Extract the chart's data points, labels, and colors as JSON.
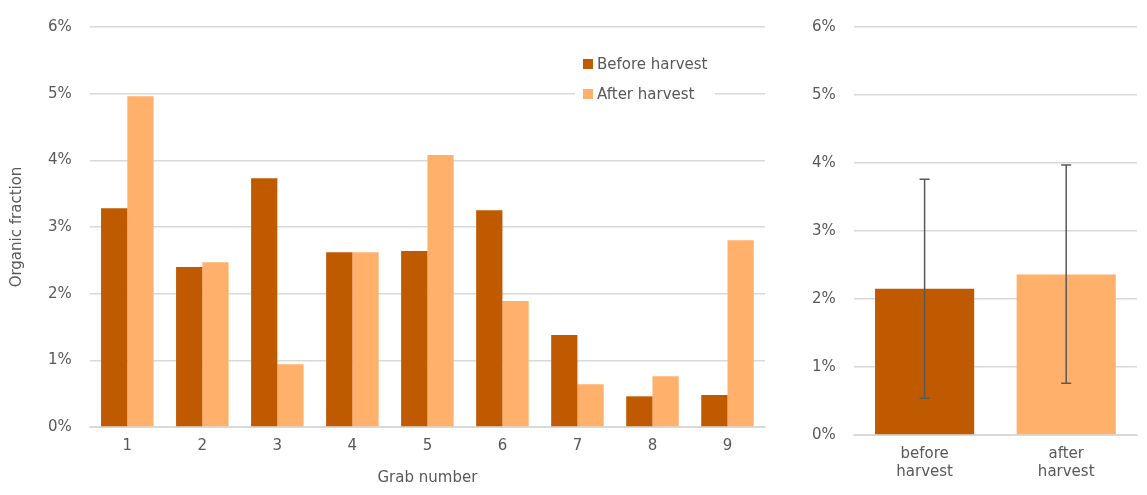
{
  "chart_data": [
    {
      "type": "bar",
      "xlabel": "Grab number",
      "ylabel": "Organic fraction",
      "categories": [
        "1",
        "2",
        "3",
        "4",
        "5",
        "6",
        "7",
        "8",
        "9"
      ],
      "series": [
        {
          "name": "Before harvest",
          "color": "#c05a00",
          "values": [
            3.28,
            2.4,
            3.73,
            2.62,
            2.64,
            3.25,
            1.38,
            0.46,
            0.48
          ]
        },
        {
          "name": "After harvest",
          "color": "#ffb06a",
          "values": [
            4.96,
            2.47,
            0.94,
            2.62,
            4.08,
            1.89,
            0.64,
            0.76,
            2.8
          ]
        }
      ],
      "ylim": [
        0,
        6
      ],
      "yticks": [
        {
          "value": 0,
          "label": "0%"
        },
        {
          "value": 1,
          "label": "1%"
        },
        {
          "value": 2,
          "label": "2%"
        },
        {
          "value": 3,
          "label": "3%"
        },
        {
          "value": 4,
          "label": "4%"
        },
        {
          "value": 5,
          "label": "5%"
        },
        {
          "value": 6,
          "label": "6%"
        }
      ],
      "grid": "y",
      "legend": "top right"
    },
    {
      "type": "bar",
      "categories": [
        "before harvest",
        "after harvest"
      ],
      "values": [
        2.15,
        2.36
      ],
      "colors": [
        "#c05a00",
        "#ffb06a"
      ],
      "errors": [
        [
          0.54,
          3.76
        ],
        [
          0.76,
          3.97
        ]
      ],
      "ylim": [
        0,
        6
      ],
      "yticks": [
        {
          "value": 0,
          "label": "0%"
        },
        {
          "value": 1,
          "label": "1%"
        },
        {
          "value": 2,
          "label": "2%"
        },
        {
          "value": 3,
          "label": "3%"
        },
        {
          "value": 4,
          "label": "4%"
        },
        {
          "value": 5,
          "label": "5%"
        },
        {
          "value": 6,
          "label": "6%"
        }
      ],
      "grid": "y"
    }
  ]
}
